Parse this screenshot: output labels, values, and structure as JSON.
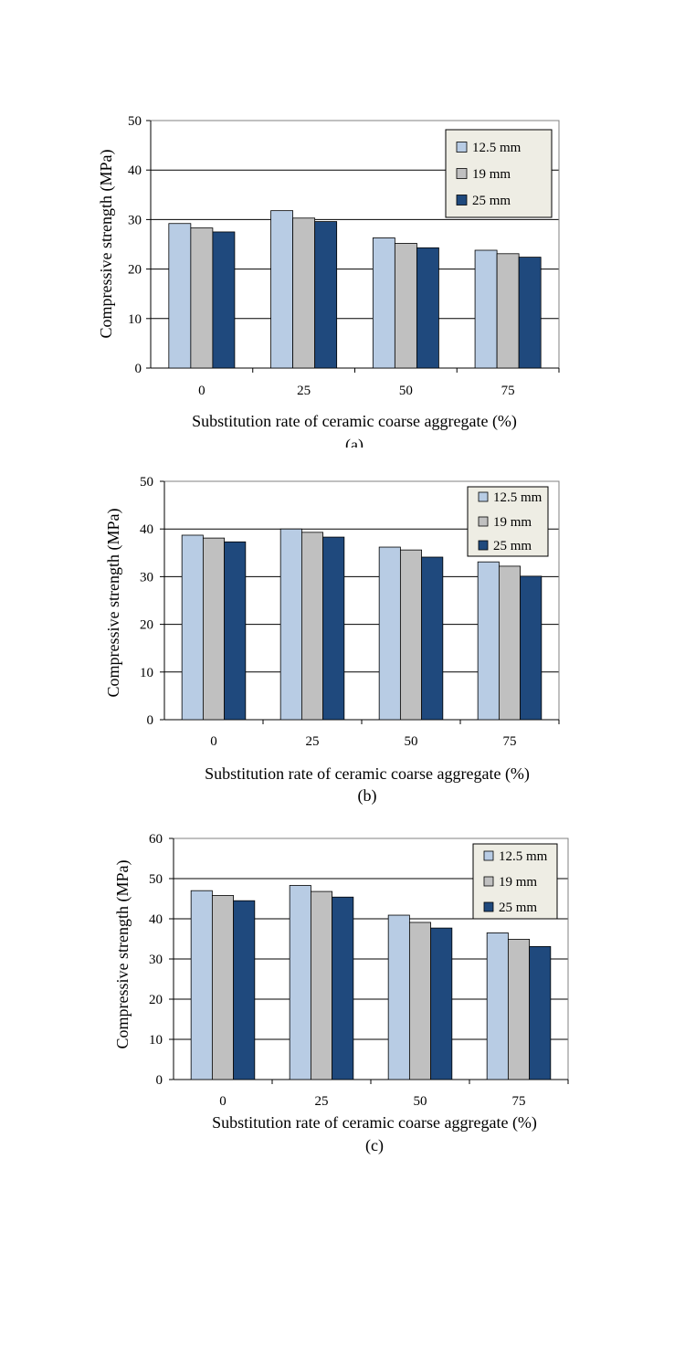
{
  "colors": {
    "s1": "#b8cce4",
    "s2": "#c0c0c0",
    "s3": "#1f497d",
    "legend_bg": "#eeede4",
    "grid": "#000000"
  },
  "chart_data": [
    {
      "type": "bar",
      "panel_label": "(a)",
      "categories": [
        "0",
        "25",
        "50",
        "75"
      ],
      "series": [
        {
          "name": "12.5 mm",
          "values": [
            29.2,
            31.8,
            26.3,
            23.8
          ]
        },
        {
          "name": "19 mm",
          "values": [
            28.3,
            30.3,
            25.2,
            23.1
          ]
        },
        {
          "name": "25 mm",
          "values": [
            27.5,
            29.6,
            24.3,
            22.4
          ]
        }
      ],
      "xlabel": "Substitution rate of ceramic coarse aggregate (%)",
      "ylabel": "Compressive strength  (MPa)",
      "ylim": [
        0,
        50
      ],
      "yticks": [
        0,
        10,
        20,
        30,
        40,
        50
      ],
      "grid": true,
      "legend": "top-right"
    },
    {
      "type": "bar",
      "panel_label": "(b)",
      "categories": [
        "0",
        "25",
        "50",
        "75"
      ],
      "series": [
        {
          "name": "12.5 mm",
          "values": [
            38.7,
            40.0,
            36.2,
            33.1
          ]
        },
        {
          "name": "19 mm",
          "values": [
            38.1,
            39.3,
            35.6,
            32.2
          ]
        },
        {
          "name": "25 mm",
          "values": [
            37.3,
            38.3,
            34.1,
            30.1
          ]
        }
      ],
      "xlabel": "Substitution rate of ceramic coarse aggregate (%)",
      "ylabel": "Compressive strength (MPa)",
      "ylim": [
        0,
        50
      ],
      "yticks": [
        0,
        10,
        20,
        30,
        40,
        50
      ],
      "grid": true,
      "legend": "top-right"
    },
    {
      "type": "bar",
      "panel_label": "(c)",
      "categories": [
        "0",
        "25",
        "50",
        "75"
      ],
      "series": [
        {
          "name": "12.5 mm",
          "values": [
            47.0,
            48.3,
            40.9,
            36.5
          ]
        },
        {
          "name": "19 mm",
          "values": [
            45.8,
            46.8,
            39.1,
            34.9
          ]
        },
        {
          "name": "25 mm",
          "values": [
            44.5,
            45.4,
            37.7,
            33.1
          ]
        }
      ],
      "xlabel": "Substitution rate of ceramic coarse aggregate (%)",
      "ylabel": "Compressive strength (MPa)",
      "ylim": [
        0,
        60
      ],
      "yticks": [
        0,
        10,
        20,
        30,
        40,
        50,
        60
      ],
      "grid": true,
      "legend": "top-right"
    }
  ]
}
